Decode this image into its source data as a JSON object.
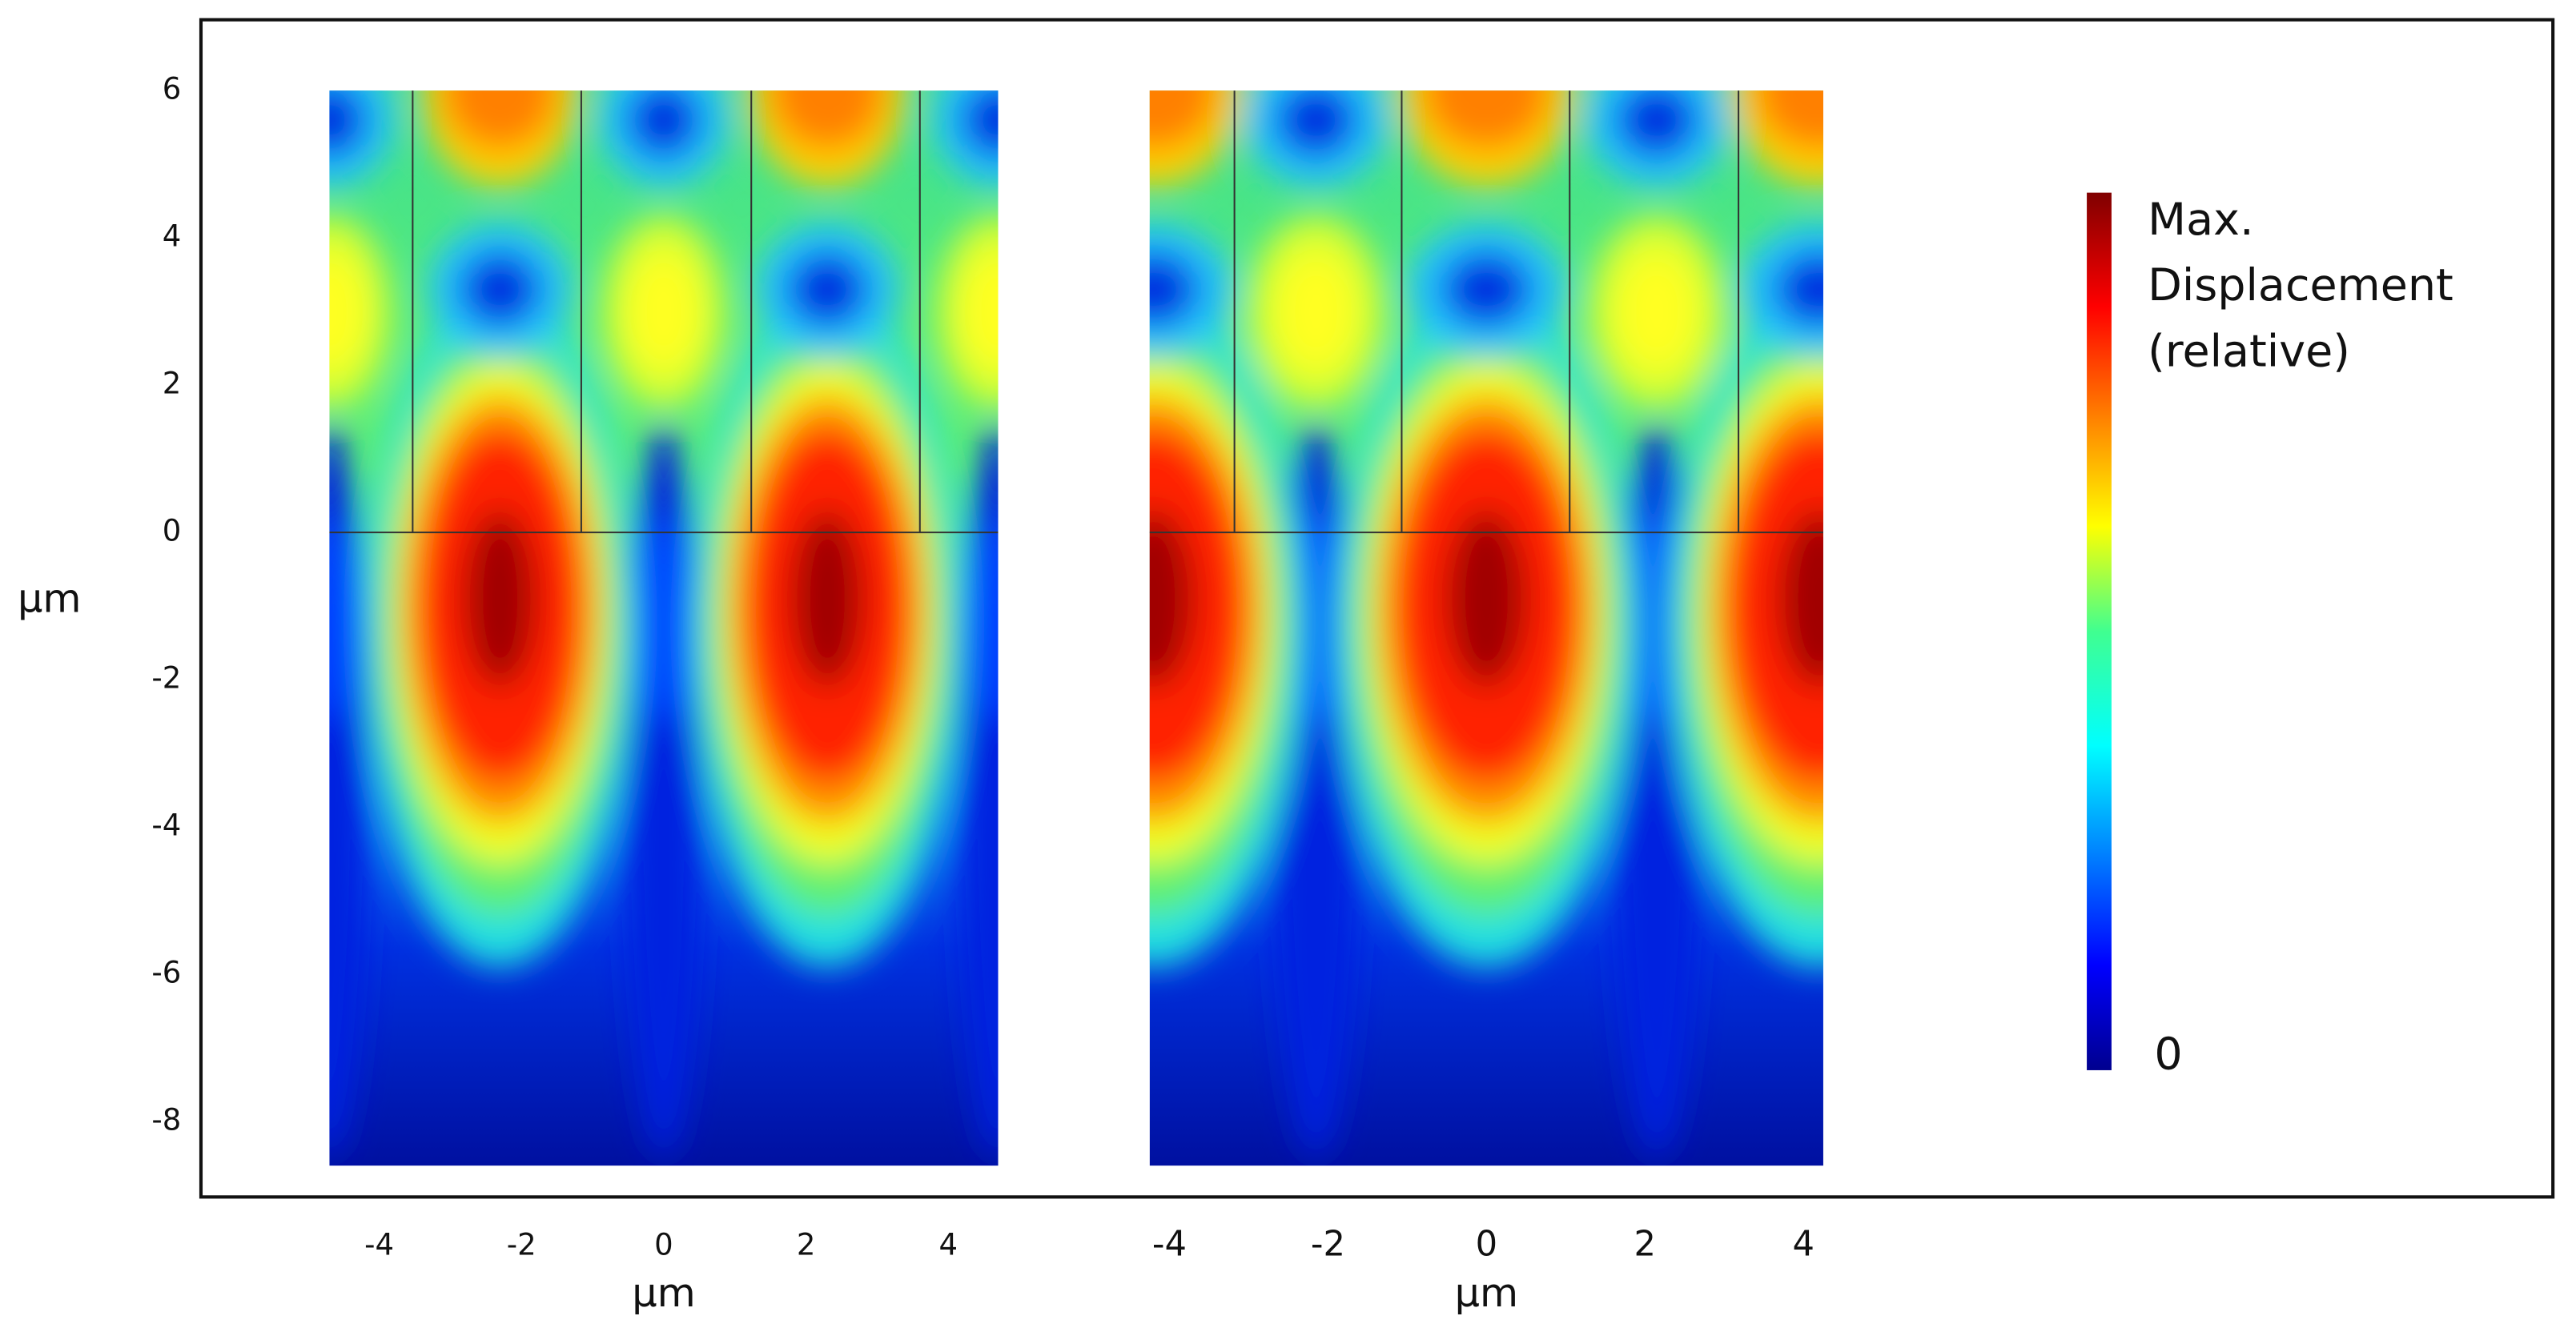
{
  "chart_data": [
    {
      "type": "heatmap",
      "x_label": "μm",
      "y_label": "μm",
      "xlim": [
        -4.7,
        4.7
      ],
      "ylim": [
        -8.6,
        6
      ],
      "xticks": [
        -4,
        -2,
        0,
        2,
        4
      ],
      "yticks": [
        -8,
        -6,
        -4,
        -2,
        0,
        2,
        4,
        6
      ]
    },
    {
      "type": "heatmap",
      "x_label": "μm",
      "xlim": [
        -4.25,
        4.25
      ],
      "ylim": [
        -8.6,
        6
      ],
      "xticks": [
        -4,
        -2,
        0,
        2,
        4
      ],
      "colorbar_labels": {
        "max": [
          "Max.",
          "Displacement",
          "(relative)"
        ],
        "min": "0"
      }
    }
  ]
}
